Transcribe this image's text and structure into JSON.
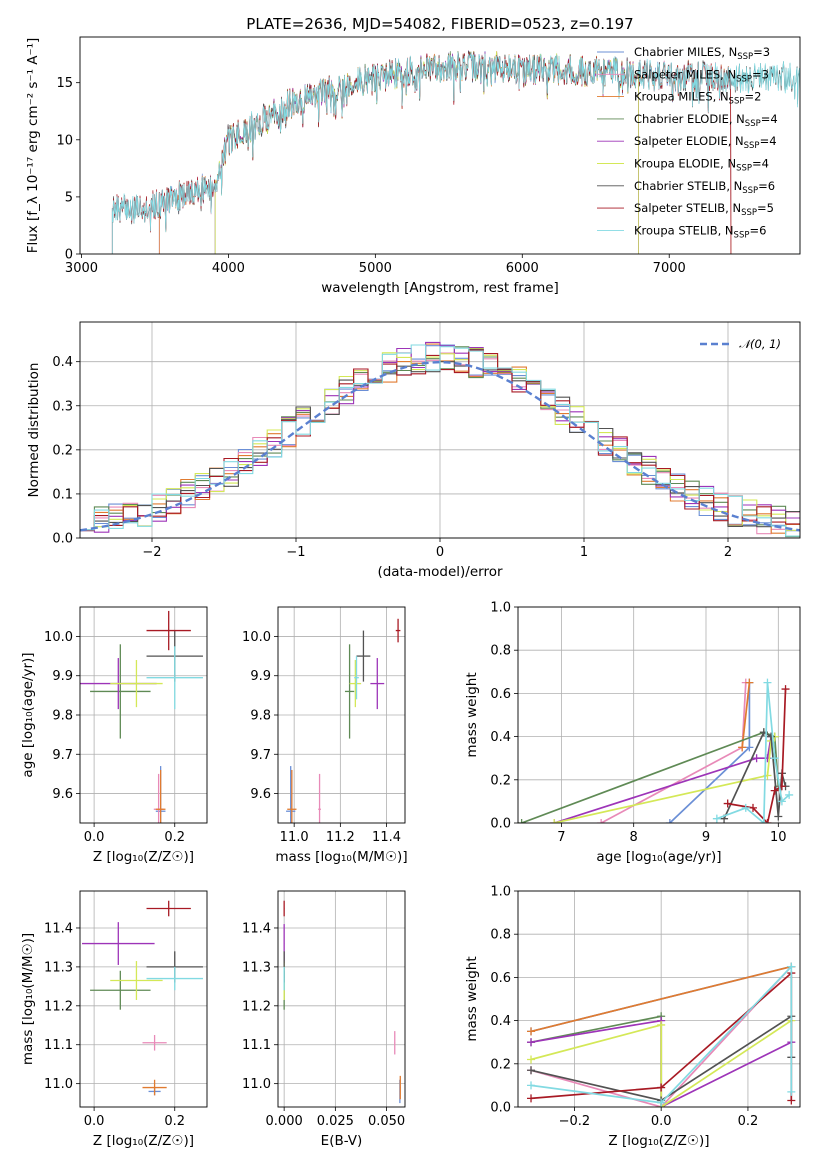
{
  "title": "PLATE=2636, MJD=54082, FIBERID=0523, z=0.197",
  "colors": {
    "Chabrier MILES": "#6b8fd6",
    "Salpeter MILES": "#e88ab8",
    "Kroupa MILES": "#e07b30",
    "Chabrier ELODIE": "#5f8a55",
    "Salpeter ELODIE": "#9d34b8",
    "Kroupa ELODIE": "#d4e857",
    "Chabrier STELIB": "#525252",
    "Salpeter STELIB": "#a81a24",
    "Kroupa STELIB": "#82dae2"
  },
  "chart_data": [
    {
      "id": "spectrum",
      "type": "line",
      "xlabel": "wavelength [Angstrom, rest frame]",
      "ylabel": "Flux [f_λ 10⁻¹⁷ erg cm⁻² s⁻¹ A⁻¹]",
      "xlim": [
        2990,
        7890
      ],
      "ylim": [
        0,
        19
      ],
      "xticks": [
        "3000",
        "4000",
        "5000",
        "6000",
        "7000"
      ],
      "yticks": [
        "0",
        "5",
        "10",
        "15"
      ],
      "legend": "right",
      "legend_entries": [
        {
          "model": "Chabrier MILES",
          "text": "Chabrier MILES, N",
          "sub": "SSP",
          "tail": "=3"
        },
        {
          "model": "Salpeter MILES",
          "text": "Salpeter MILES, N",
          "sub": "SSP",
          "tail": "=3"
        },
        {
          "model": "Kroupa MILES",
          "text": "Kroupa MILES, N",
          "sub": "SSP",
          "tail": "=2"
        },
        {
          "model": "Chabrier ELODIE",
          "text": "Chabrier ELODIE, N",
          "sub": "SSP",
          "tail": "=4"
        },
        {
          "model": "Salpeter ELODIE",
          "text": "Salpeter ELODIE, N",
          "sub": "SSP",
          "tail": "=4"
        },
        {
          "model": "Kroupa ELODIE",
          "text": "Kroupa ELODIE, N",
          "sub": "SSP",
          "tail": "=4"
        },
        {
          "model": "Chabrier STELIB",
          "text": "Chabrier STELIB, N",
          "sub": "SSP",
          "tail": "=6"
        },
        {
          "model": "Salpeter STELIB",
          "text": "Salpeter STELIB, N",
          "sub": "SSP",
          "tail": "=5"
        },
        {
          "model": "Kroupa STELIB",
          "text": "Kroupa STELIB, N",
          "sub": "SSP",
          "tail": "=6"
        }
      ],
      "continuum": [
        [
          3200,
          3.8
        ],
        [
          3500,
          4.4
        ],
        [
          3700,
          5.2
        ],
        [
          3900,
          6.0
        ],
        [
          4000,
          10.0
        ],
        [
          4200,
          11.5
        ],
        [
          4400,
          13.0
        ],
        [
          4700,
          14.4
        ],
        [
          5000,
          15.5
        ],
        [
          5500,
          16.5
        ],
        [
          6000,
          16.3
        ],
        [
          6500,
          16.0
        ],
        [
          7000,
          15.6
        ],
        [
          7400,
          15.5
        ],
        [
          7500,
          15.5
        ]
      ],
      "series_ranges": {
        "Chabrier MILES": [
          3530,
          7420
        ],
        "Salpeter MILES": [
          3530,
          7420
        ],
        "Kroupa MILES": [
          3530,
          7420
        ],
        "Chabrier ELODIE": [
          3910,
          6790
        ],
        "Salpeter ELODIE": [
          3910,
          6790
        ],
        "Kroupa ELODIE": [
          3910,
          6790
        ],
        "Chabrier STELIB": [
          3210,
          7890
        ],
        "Salpeter STELIB": [
          3210,
          7420
        ],
        "Kroupa STELIB": [
          3210,
          7890
        ]
      }
    },
    {
      "id": "residuals",
      "type": "step",
      "xlabel": "(data-model)/error",
      "ylabel": "Normed distribution",
      "xlim": [
        -2.5,
        2.5
      ],
      "ylim": [
        0,
        0.49
      ],
      "xticks": [
        "−2",
        "−1",
        "0",
        "1",
        "2"
      ],
      "yticks": [
        "0.0",
        "0.1",
        "0.2",
        "0.3",
        "0.4"
      ],
      "grid": true,
      "legend": "top-right",
      "legend_entry": "𝒩(0, 1)",
      "bin_width": 0.1,
      "bin_start": -2.5,
      "reference_curve": "normal(0,1)"
    },
    {
      "id": "age-vs-Z",
      "type": "scatter",
      "xlabel": "Z [log₁₀(Z/Z☉)]",
      "ylabel": "age  [log₁₀(age/yr)]",
      "xlim": [
        -0.035,
        0.28
      ],
      "ylim": [
        9.525,
        10.075
      ],
      "xticks": [
        "0.0",
        "0.2"
      ],
      "yticks": [
        "9.6",
        "9.7",
        "9.8",
        "9.9",
        "10.0"
      ],
      "grid": true,
      "points": [
        {
          "model": "Chabrier MILES",
          "x": 0.165,
          "xerr": 0.012,
          "y": 9.555,
          "yerr": 0.115
        },
        {
          "model": "Salpeter MILES",
          "x": 0.16,
          "xerr": 0.012,
          "y": 9.56,
          "yerr": 0.09
        },
        {
          "model": "Kroupa MILES",
          "x": 0.165,
          "xerr": 0.012,
          "y": 9.56,
          "yerr": 0.1
        },
        {
          "model": "Chabrier ELODIE",
          "x": 0.065,
          "xerr": 0.075,
          "y": 9.86,
          "yerr": 0.12
        },
        {
          "model": "Salpeter ELODIE",
          "x": 0.06,
          "xerr": 0.095,
          "y": 9.88,
          "yerr": 0.065
        },
        {
          "model": "Kroupa ELODIE",
          "x": 0.105,
          "xerr": 0.065,
          "y": 9.88,
          "yerr": 0.06
        },
        {
          "model": "Chabrier STELIB",
          "x": 0.2,
          "xerr": 0.07,
          "y": 9.95,
          "yerr": 0.065
        },
        {
          "model": "Salpeter STELIB",
          "x": 0.185,
          "xerr": 0.055,
          "y": 10.015,
          "yerr": 0.05
        },
        {
          "model": "Kroupa STELIB",
          "x": 0.2,
          "xerr": 0.07,
          "y": 9.895,
          "yerr": 0.08
        }
      ]
    },
    {
      "id": "age-vs-mass",
      "type": "scatter",
      "xlabel": "mass [log₁₀(M/M☉)]",
      "ylabel": "",
      "xlim": [
        10.93,
        11.48
      ],
      "ylim": [
        9.525,
        10.075
      ],
      "xticks": [
        "11.0",
        "11.2",
        "11.4"
      ],
      "yticks": [
        "9.6",
        "9.7",
        "9.8",
        "9.9",
        "10.0"
      ],
      "grid": true,
      "points": [
        {
          "model": "Chabrier MILES",
          "x": 10.985,
          "xerr": 0.02,
          "y": 9.555,
          "yerr": 0.115
        },
        {
          "model": "Salpeter MILES",
          "x": 11.11,
          "xerr": 0.006,
          "y": 9.56,
          "yerr": 0.09
        },
        {
          "model": "Kroupa MILES",
          "x": 10.99,
          "xerr": 0.02,
          "y": 9.56,
          "yerr": 0.1
        },
        {
          "model": "Chabrier ELODIE",
          "x": 11.24,
          "xerr": 0.02,
          "y": 9.86,
          "yerr": 0.12
        },
        {
          "model": "Salpeter ELODIE",
          "x": 11.36,
          "xerr": 0.03,
          "y": 9.88,
          "yerr": 0.065
        },
        {
          "model": "Kroupa ELODIE",
          "x": 11.265,
          "xerr": 0.025,
          "y": 9.88,
          "yerr": 0.06
        },
        {
          "model": "Chabrier STELIB",
          "x": 11.3,
          "xerr": 0.03,
          "y": 9.95,
          "yerr": 0.065
        },
        {
          "model": "Salpeter STELIB",
          "x": 11.45,
          "xerr": 0.01,
          "y": 10.015,
          "yerr": 0.03
        },
        {
          "model": "Kroupa STELIB",
          "x": 11.27,
          "xerr": 0.01,
          "y": 9.895,
          "yerr": 0.055
        }
      ]
    },
    {
      "id": "mass-weight-vs-age",
      "type": "line",
      "xlabel": "age  [log₁₀(age/yr)]",
      "ylabel": "mass weight",
      "xlim": [
        6.4,
        10.3
      ],
      "ylim": [
        0,
        1
      ],
      "xticks": [
        "7",
        "8",
        "9",
        "10"
      ],
      "yticks": [
        "0.0",
        "0.2",
        "0.4",
        "0.6",
        "0.8",
        "1.0"
      ],
      "grid": true,
      "series": [
        {
          "model": "Chabrier MILES",
          "x": [
            8.5,
            9.6,
            9.6
          ],
          "y": [
            0.0,
            0.35,
            0.65
          ]
        },
        {
          "model": "Salpeter MILES",
          "x": [
            7.55,
            9.5,
            9.55
          ],
          "y": [
            0.0,
            0.35,
            0.65
          ]
        },
        {
          "model": "Kroupa MILES",
          "x": [
            9.5,
            9.6
          ],
          "y": [
            0.35,
            0.65
          ]
        },
        {
          "model": "Chabrier ELODIE",
          "x": [
            6.45,
            9.8,
            9.95,
            10.0
          ],
          "y": [
            0.0,
            0.42,
            0.4,
            0.17
          ]
        },
        {
          "model": "Salpeter ELODIE",
          "x": [
            6.9,
            9.7,
            9.85,
            9.9
          ],
          "y": [
            0.0,
            0.3,
            0.3,
            0.4
          ]
        },
        {
          "model": "Kroupa ELODIE",
          "x": [
            6.9,
            9.85,
            9.9,
            9.95
          ],
          "y": [
            0.0,
            0.22,
            0.38,
            0.4
          ]
        },
        {
          "model": "Chabrier STELIB",
          "x": [
            9.25,
            9.8,
            9.9,
            10.0,
            10.05,
            10.1
          ],
          "y": [
            0.02,
            0.42,
            0.4,
            0.03,
            0.23,
            0.17
          ]
        },
        {
          "model": "Salpeter STELIB",
          "x": [
            9.3,
            9.65,
            9.85,
            9.95,
            10.05,
            10.1
          ],
          "y": [
            0.09,
            0.07,
            0.0,
            0.15,
            0.17,
            0.62
          ]
        },
        {
          "model": "Kroupa STELIB",
          "x": [
            9.15,
            9.55,
            9.8,
            9.85,
            9.95,
            10.05,
            10.15
          ],
          "y": [
            0.02,
            0.07,
            0.0,
            0.65,
            0.3,
            0.1,
            0.13
          ]
        }
      ]
    },
    {
      "id": "mass-vs-Z",
      "type": "scatter",
      "xlabel": "Z [log₁₀(Z/Z☉)]",
      "ylabel": "mass [log₁₀(M/M☉)]",
      "xlim": [
        -0.035,
        0.28
      ],
      "ylim": [
        10.94,
        11.495
      ],
      "xticks": [
        "0.0",
        "0.2"
      ],
      "yticks": [
        "11.0",
        "11.1",
        "11.2",
        "11.3",
        "11.4"
      ],
      "grid": true,
      "points": [
        {
          "model": "Chabrier MILES",
          "x": 0.15,
          "xerr": 0.015,
          "y": 10.98,
          "yerr": 0.01
        },
        {
          "model": "Salpeter MILES",
          "x": 0.15,
          "xerr": 0.03,
          "y": 11.105,
          "yerr": 0.02
        },
        {
          "model": "Kroupa MILES",
          "x": 0.15,
          "xerr": 0.03,
          "y": 10.99,
          "yerr": 0.02
        },
        {
          "model": "Chabrier ELODIE",
          "x": 0.065,
          "xerr": 0.075,
          "y": 11.24,
          "yerr": 0.05
        },
        {
          "model": "Salpeter ELODIE",
          "x": 0.06,
          "xerr": 0.09,
          "y": 11.36,
          "yerr": 0.055
        },
        {
          "model": "Kroupa ELODIE",
          "x": 0.105,
          "xerr": 0.065,
          "y": 11.265,
          "yerr": 0.05
        },
        {
          "model": "Chabrier STELIB",
          "x": 0.2,
          "xerr": 0.07,
          "y": 11.3,
          "yerr": 0.04
        },
        {
          "model": "Salpeter STELIB",
          "x": 0.185,
          "xerr": 0.055,
          "y": 11.45,
          "yerr": 0.02
        },
        {
          "model": "Kroupa STELIB",
          "x": 0.2,
          "xerr": 0.07,
          "y": 11.27,
          "yerr": 0.03
        }
      ]
    },
    {
      "id": "mass-vs-ebv",
      "type": "scatter",
      "xlabel": "E(B-V)",
      "ylabel": "",
      "xlim": [
        -0.003,
        0.059
      ],
      "ylim": [
        10.94,
        11.495
      ],
      "xticks": [
        "0.000",
        "0.025",
        "0.050"
      ],
      "yticks": [
        "11.0",
        "11.1",
        "11.2",
        "11.3",
        "11.4"
      ],
      "grid": true,
      "points": [
        {
          "model": "Chabrier MILES",
          "x": 0.0565,
          "xerr": 0.0002,
          "y": 10.98,
          "yerr": 0.03
        },
        {
          "model": "Salpeter MILES",
          "x": 0.054,
          "xerr": 0.0002,
          "y": 11.105,
          "yerr": 0.03
        },
        {
          "model": "Kroupa MILES",
          "x": 0.0567,
          "xerr": 0.0002,
          "y": 10.99,
          "yerr": 0.03
        },
        {
          "model": "Chabrier ELODIE",
          "x": 0.0,
          "xerr": 0.0002,
          "y": 11.24,
          "yerr": 0.05
        },
        {
          "model": "Salpeter ELODIE",
          "x": 0.0,
          "xerr": 0.0002,
          "y": 11.36,
          "yerr": 0.05
        },
        {
          "model": "Kroupa ELODIE",
          "x": 0.0,
          "xerr": 0.0002,
          "y": 11.265,
          "yerr": 0.05
        },
        {
          "model": "Chabrier STELIB",
          "x": 0.0,
          "xerr": 0.0002,
          "y": 11.3,
          "yerr": 0.04
        },
        {
          "model": "Salpeter STELIB",
          "x": 0.0,
          "xerr": 0.0002,
          "y": 11.45,
          "yerr": 0.02
        },
        {
          "model": "Kroupa STELIB",
          "x": 0.0,
          "xerr": 0.0002,
          "y": 11.27,
          "yerr": 0.03
        }
      ]
    },
    {
      "id": "mass-weight-vs-Z",
      "type": "line",
      "xlabel": "Z [log₁₀(Z/Z☉)]",
      "ylabel": "mass weight",
      "xlim": [
        -0.33,
        0.32
      ],
      "ylim": [
        0,
        1
      ],
      "xticks": [
        "−0.2",
        "0.0",
        "0.2"
      ],
      "yticks": [
        "0.0",
        "0.2",
        "0.4",
        "0.6",
        "0.8",
        "1.0"
      ],
      "grid": true,
      "series": [
        {
          "model": "Chabrier MILES",
          "x": [
            -0.3,
            0.3
          ],
          "y": [
            0.35,
            0.65
          ]
        },
        {
          "model": "Salpeter MILES",
          "x": [
            -0.3,
            0.0,
            0.3
          ],
          "y": [
            0.17,
            0.0,
            0.65
          ]
        },
        {
          "model": "Kroupa MILES",
          "x": [
            -0.3,
            0.3
          ],
          "y": [
            0.35,
            0.65
          ]
        },
        {
          "model": "Chabrier ELODIE",
          "x": [
            -0.3,
            0.0,
            0.0
          ],
          "y": [
            0.3,
            0.42,
            0.0
          ]
        },
        {
          "model": "Salpeter ELODIE",
          "x": [
            -0.3,
            0.0,
            0.0,
            0.3
          ],
          "y": [
            0.3,
            0.4,
            0.0,
            0.3
          ]
        },
        {
          "model": "Kroupa ELODIE",
          "x": [
            -0.3,
            0.0,
            0.0,
            0.3
          ],
          "y": [
            0.22,
            0.38,
            0.0,
            0.4
          ]
        },
        {
          "model": "Chabrier STELIB",
          "x": [
            -0.3,
            0.0,
            0.3,
            0.3
          ],
          "y": [
            0.17,
            0.03,
            0.42,
            0.23
          ]
        },
        {
          "model": "Salpeter STELIB",
          "x": [
            -0.3,
            0.0,
            0.3,
            0.3
          ],
          "y": [
            0.04,
            0.09,
            0.62,
            0.03
          ]
        },
        {
          "model": "Kroupa STELIB",
          "x": [
            -0.3,
            0.0,
            0.3,
            0.3
          ],
          "y": [
            0.1,
            0.02,
            0.65,
            0.07
          ]
        }
      ]
    }
  ]
}
